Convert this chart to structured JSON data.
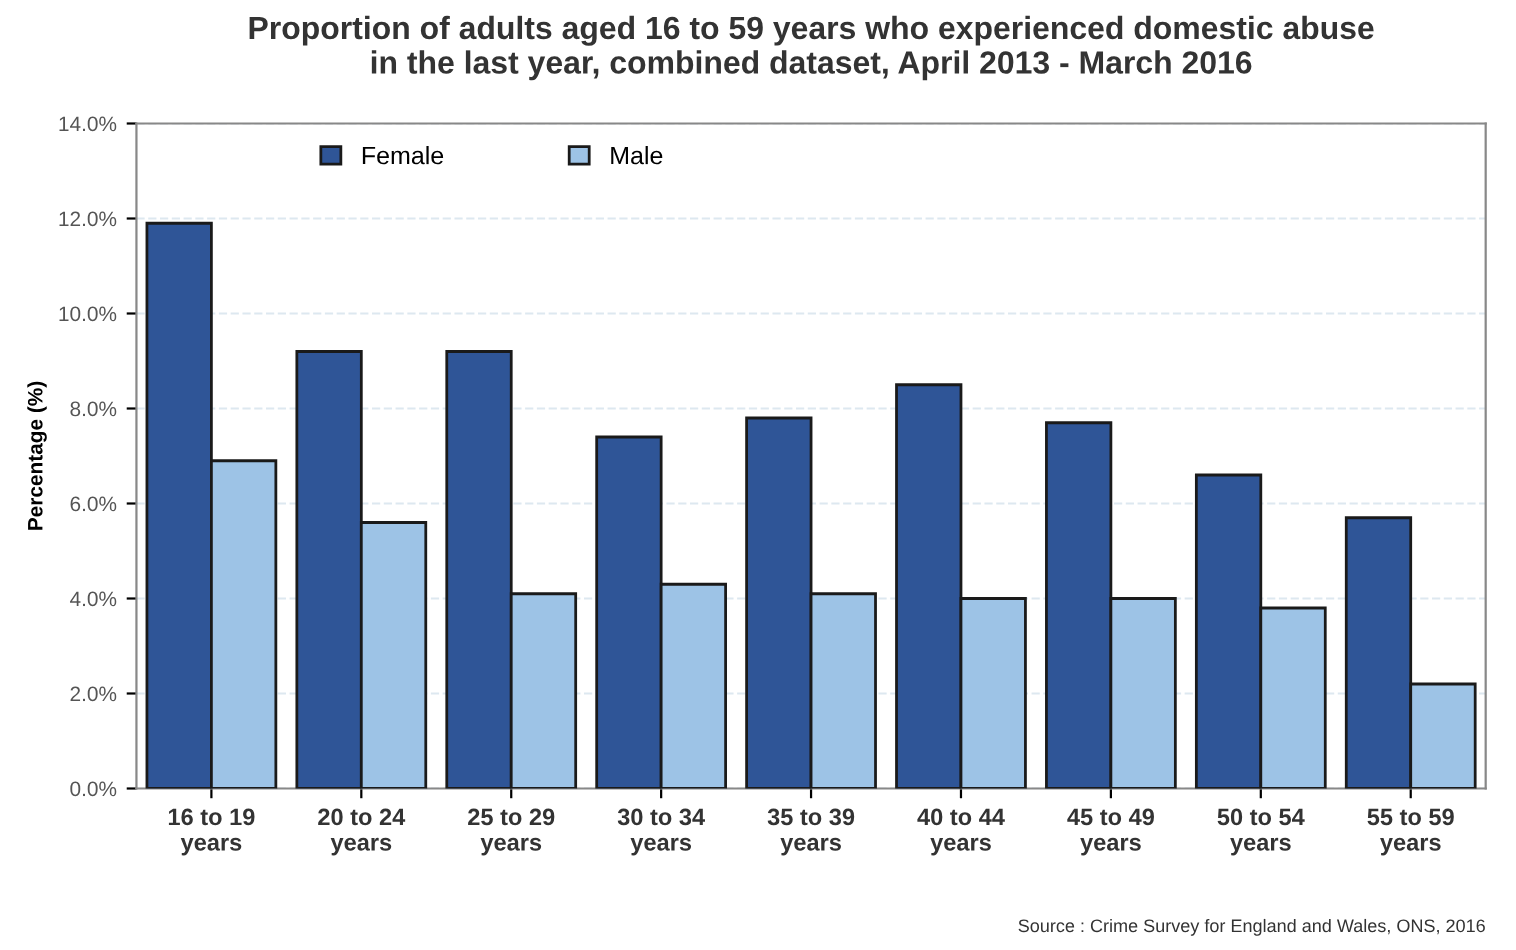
{
  "chart_data": {
    "type": "bar",
    "title": "Proportion of adults aged 16 to 59 years who experienced domestic abuse\nin the last year, combined dataset, April 2013 - March 2016",
    "ylabel": "Percentage (%)",
    "categories": [
      "16 to 19\nyears",
      "20 to 24\nyears",
      "25 to 29\nyears",
      "30 to 34\nyears",
      "35 to 39\nyears",
      "40 to 44\nyears",
      "45 to 49\nyears",
      "50 to 54\nyears",
      "55 to 59\nyears"
    ],
    "series": [
      {
        "name": "Female",
        "color": "#2f5597",
        "values": [
          11.9,
          9.2,
          9.2,
          7.4,
          7.8,
          8.5,
          7.7,
          6.6,
          5.7
        ]
      },
      {
        "name": "Male",
        "color": "#9dc3e6",
        "values": [
          6.9,
          5.6,
          4.1,
          4.3,
          4.1,
          4.0,
          4.0,
          3.8,
          2.2
        ]
      }
    ],
    "ylim": [
      0,
      14
    ],
    "yticks": [
      {
        "value": 0,
        "label": "0.0%"
      },
      {
        "value": 2,
        "label": "2.0%"
      },
      {
        "value": 4,
        "label": "4.0%"
      },
      {
        "value": 6,
        "label": "6.0%"
      },
      {
        "value": 8,
        "label": "8.0%"
      },
      {
        "value": 10,
        "label": "10.0%"
      },
      {
        "value": 12,
        "label": "12.0%"
      },
      {
        "value": 14,
        "label": "14.0%"
      }
    ],
    "grid": "y",
    "legend": "top left",
    "annotations": [
      "Source : Crime Survey for England and Wales, ONS, 2016"
    ]
  }
}
